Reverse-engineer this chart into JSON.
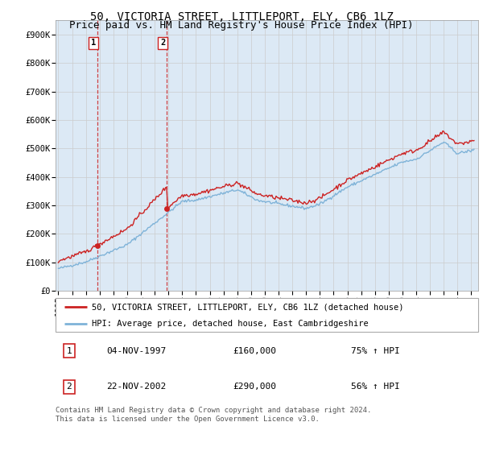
{
  "title": "50, VICTORIA STREET, LITTLEPORT, ELY, CB6 1LZ",
  "subtitle": "Price paid vs. HM Land Registry's House Price Index (HPI)",
  "ylabel_ticks": [
    "£0",
    "£100K",
    "£200K",
    "£300K",
    "£400K",
    "£500K",
    "£600K",
    "£700K",
    "£800K",
    "£900K"
  ],
  "ytick_values": [
    0,
    100000,
    200000,
    300000,
    400000,
    500000,
    600000,
    700000,
    800000,
    900000
  ],
  "ylim": [
    0,
    950000
  ],
  "xlim_start": 1994.8,
  "xlim_end": 2025.5,
  "background_color": "#ffffff",
  "grid_color": "#cccccc",
  "plot_bg_color": "#dce9f5",
  "hpi_line_color": "#7fb3d8",
  "price_line_color": "#cc2222",
  "sale1_x": 1997.84,
  "sale1_y": 160000,
  "sale2_x": 2002.89,
  "sale2_y": 290000,
  "legend_price_label": "50, VICTORIA STREET, LITTLEPORT, ELY, CB6 1LZ (detached house)",
  "legend_hpi_label": "HPI: Average price, detached house, East Cambridgeshire",
  "table_row1": [
    "1",
    "04-NOV-1997",
    "£160,000",
    "75% ↑ HPI"
  ],
  "table_row2": [
    "2",
    "22-NOV-2002",
    "£290,000",
    "56% ↑ HPI"
  ],
  "footnote": "Contains HM Land Registry data © Crown copyright and database right 2024.\nThis data is licensed under the Open Government Licence v3.0.",
  "title_fontsize": 10,
  "subtitle_fontsize": 9,
  "tick_fontsize": 7.5,
  "legend_fontsize": 7.5,
  "table_fontsize": 8,
  "footnote_fontsize": 6.5
}
